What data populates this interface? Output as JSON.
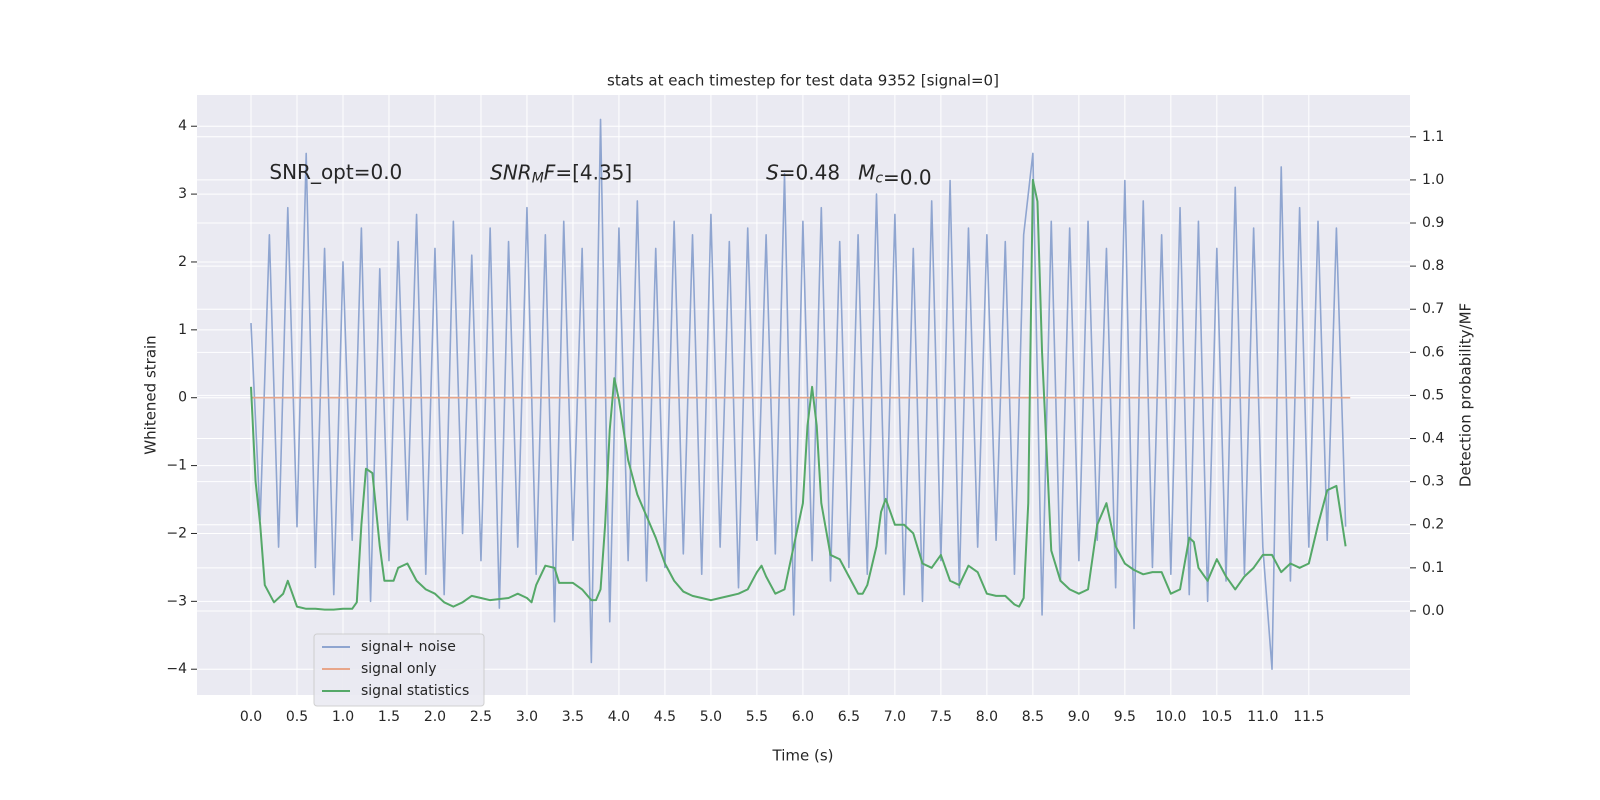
{
  "chart_data": {
    "type": "line",
    "title": "stats at each timestep for test data 9352 [signal=0]",
    "x_label": "Time (s)",
    "y_label": "Whitened strain",
    "y2_label": "Detection probability/MF",
    "annotations": [
      {
        "text": "SNR_opt=0.0",
        "math": false,
        "x": 0.2,
        "y": 3.3
      },
      {
        "text": "SNR_MF=[4.35]",
        "math": true,
        "x": 2.6,
        "y": 3.3
      },
      {
        "text": "S=0.48",
        "math": true,
        "x": 5.6,
        "y": 3.3
      },
      {
        "text": "M_c=0.0",
        "math": true,
        "x": 6.6,
        "y": 3.3
      }
    ],
    "xlim": [
      -0.587,
      12.6
    ],
    "ylim": [
      -4.38,
      4.46
    ],
    "y2lim": [
      -0.195,
      1.197
    ],
    "xticks": [
      {
        "value": 0,
        "label": "0.0"
      },
      0.5,
      {
        "value": 1,
        "label": "1.0"
      },
      1.5,
      {
        "value": 2,
        "label": "2.0"
      },
      2.5,
      {
        "value": 3,
        "label": "3.0"
      },
      3.5,
      {
        "value": 4,
        "label": "4.0"
      },
      4.5,
      {
        "value": 5,
        "label": "5.0"
      },
      5.5,
      {
        "value": 6,
        "label": "6.0"
      },
      6.5,
      {
        "value": 7,
        "label": "7.0"
      },
      7.5,
      {
        "value": 8,
        "label": "8.0"
      },
      8.5,
      {
        "value": 9,
        "label": "9.0"
      },
      9.5,
      {
        "value": 10,
        "label": "10.0"
      },
      10.5,
      {
        "value": 11,
        "label": "11.0"
      },
      11.5
    ],
    "yticks": [
      {
        "value": -4,
        "label": "−4"
      },
      {
        "value": -3,
        "label": "−3"
      },
      {
        "value": -2,
        "label": "−2"
      },
      {
        "value": -1,
        "label": "−1"
      },
      0,
      1,
      2,
      3,
      4
    ],
    "y2ticks": [
      {
        "value": 0,
        "label": "0.0"
      },
      0.1,
      0.2,
      0.3,
      0.4,
      0.5,
      0.6,
      0.7,
      0.8,
      0.9,
      {
        "value": 1,
        "label": "1.0"
      },
      1.1
    ],
    "grid": true,
    "legend": "lower left",
    "series": [
      {
        "name": "signal+ noise",
        "color": "#8fa5d0",
        "x": [
          0,
          0.1,
          0.2,
          0.3,
          0.4,
          0.5,
          0.6,
          0.7,
          0.8,
          0.9,
          1,
          1.1,
          1.2,
          1.3,
          1.4,
          1.5,
          1.6,
          1.7,
          1.8,
          1.9,
          2,
          2.1,
          2.2,
          2.3,
          2.4,
          2.5,
          2.6,
          2.7,
          2.8,
          2.9,
          3,
          3.1,
          3.2,
          3.3,
          3.4,
          3.5,
          3.6,
          3.7,
          3.8,
          3.9,
          4,
          4.1,
          4.2,
          4.3,
          4.4,
          4.5,
          4.6,
          4.7,
          4.8,
          4.9,
          5,
          5.1,
          5.2,
          5.3,
          5.4,
          5.5,
          5.6,
          5.7,
          5.8,
          5.9,
          6,
          6.1,
          6.2,
          6.3,
          6.4,
          6.5,
          6.6,
          6.7,
          6.8,
          6.9,
          7,
          7.1,
          7.2,
          7.3,
          7.4,
          7.5,
          7.6,
          7.7,
          7.8,
          7.9,
          8,
          8.1,
          8.2,
          8.3,
          8.4,
          8.5,
          8.6,
          8.7,
          8.8,
          8.9,
          9,
          9.1,
          9.2,
          9.3,
          9.4,
          9.5,
          9.6,
          9.7,
          9.8,
          9.9,
          10,
          10.1,
          10.2,
          10.3,
          10.4,
          10.5,
          10.6,
          10.7,
          10.8,
          10.9,
          11,
          11.1,
          11.2,
          11.3,
          11.4,
          11.5,
          11.6,
          11.7,
          11.8,
          11.9
        ],
        "values": [
          1.1,
          -1.8,
          2.4,
          -2.2,
          2.8,
          -1.9,
          3.6,
          -2.5,
          2.2,
          -2.9,
          2.0,
          -2.1,
          2.5,
          -3.0,
          1.9,
          -2.4,
          2.3,
          -1.8,
          2.7,
          -2.6,
          2.2,
          -2.9,
          2.6,
          -2.0,
          2.1,
          -2.4,
          2.5,
          -3.1,
          2.3,
          -2.2,
          2.8,
          -2.6,
          2.4,
          -3.3,
          2.6,
          -2.1,
          2.2,
          -3.9,
          4.1,
          -3.3,
          2.5,
          -2.4,
          2.9,
          -2.7,
          2.2,
          -2.5,
          2.6,
          -2.3,
          2.4,
          -2.6,
          2.7,
          -2.2,
          2.3,
          -2.8,
          2.5,
          -2.1,
          2.4,
          -2.3,
          3.3,
          -3.2,
          2.6,
          -2.4,
          2.8,
          -2.7,
          2.3,
          -2.5,
          2.4,
          -2.6,
          3.0,
          -2.3,
          2.7,
          -2.9,
          2.2,
          -3.0,
          2.9,
          -2.4,
          3.2,
          -2.8,
          2.5,
          -2.2,
          2.4,
          -2.1,
          2.3,
          -2.6,
          2.4,
          3.6,
          -3.2,
          2.6,
          -2.7,
          2.5,
          -2.4,
          2.6,
          -2.1,
          2.2,
          -2.8,
          3.2,
          -3.4,
          2.9,
          -2.5,
          2.4,
          -2.6,
          2.8,
          -2.9,
          2.6,
          -3.0,
          2.2,
          -2.7,
          3.1,
          -2.6,
          2.5,
          -2.2,
          -4.0,
          3.4,
          -2.7,
          2.8,
          -2.2,
          2.6,
          -2.1,
          2.5,
          -1.9
        ]
      },
      {
        "name": "signal only",
        "color": "#e8a68a",
        "x": [
          0,
          11.95
        ],
        "values": [
          0,
          0
        ]
      },
      {
        "name": "signal statistics",
        "color": "#55a868",
        "axis": "y2",
        "x": [
          0,
          0.05,
          0.1,
          0.15,
          0.25,
          0.35,
          0.4,
          0.5,
          0.6,
          0.7,
          0.8,
          0.9,
          1,
          1.1,
          1.15,
          1.2,
          1.25,
          1.32,
          1.4,
          1.45,
          1.55,
          1.6,
          1.7,
          1.8,
          1.9,
          2,
          2.1,
          2.2,
          2.3,
          2.4,
          2.5,
          2.6,
          2.8,
          2.9,
          3,
          3.05,
          3.1,
          3.2,
          3.3,
          3.35,
          3.5,
          3.6,
          3.7,
          3.75,
          3.8,
          3.85,
          3.9,
          3.95,
          4,
          4.1,
          4.2,
          4.3,
          4.4,
          4.5,
          4.6,
          4.7,
          4.8,
          4.9,
          5,
          5.1,
          5.2,
          5.3,
          5.4,
          5.5,
          5.55,
          5.6,
          5.7,
          5.8,
          5.9,
          6,
          6.05,
          6.1,
          6.15,
          6.2,
          6.3,
          6.4,
          6.5,
          6.6,
          6.65,
          6.7,
          6.8,
          6.85,
          6.9,
          7,
          7.1,
          7.2,
          7.3,
          7.4,
          7.5,
          7.6,
          7.7,
          7.8,
          7.9,
          8,
          8.1,
          8.2,
          8.3,
          8.35,
          8.4,
          8.45,
          8.5,
          8.55,
          8.6,
          8.7,
          8.8,
          8.9,
          9,
          9.1,
          9.2,
          9.3,
          9.4,
          9.5,
          9.6,
          9.7,
          9.8,
          9.9,
          10,
          10.1,
          10.2,
          10.25,
          10.3,
          10.4,
          10.5,
          10.6,
          10.7,
          10.8,
          10.9,
          11,
          11.1,
          11.2,
          11.3,
          11.4,
          11.5,
          11.6,
          11.7,
          11.8,
          11.9
        ],
        "values": [
          0.52,
          0.3,
          0.2,
          0.06,
          0.02,
          0.04,
          0.07,
          0.01,
          0.005,
          0.005,
          0.003,
          0.003,
          0.005,
          0.005,
          0.02,
          0.2,
          0.33,
          0.32,
          0.15,
          0.07,
          0.07,
          0.1,
          0.11,
          0.07,
          0.05,
          0.04,
          0.02,
          0.01,
          0.02,
          0.035,
          0.03,
          0.025,
          0.03,
          0.04,
          0.03,
          0.02,
          0.06,
          0.105,
          0.1,
          0.065,
          0.065,
          0.05,
          0.025,
          0.025,
          0.05,
          0.2,
          0.42,
          0.54,
          0.49,
          0.35,
          0.27,
          0.22,
          0.17,
          0.11,
          0.07,
          0.045,
          0.035,
          0.03,
          0.025,
          0.03,
          0.035,
          0.04,
          0.05,
          0.09,
          0.105,
          0.08,
          0.04,
          0.05,
          0.15,
          0.25,
          0.43,
          0.52,
          0.43,
          0.25,
          0.13,
          0.12,
          0.08,
          0.04,
          0.04,
          0.06,
          0.15,
          0.23,
          0.26,
          0.2,
          0.2,
          0.18,
          0.11,
          0.1,
          0.13,
          0.07,
          0.06,
          0.105,
          0.09,
          0.04,
          0.035,
          0.035,
          0.015,
          0.01,
          0.03,
          0.25,
          1.0,
          0.95,
          0.6,
          0.14,
          0.07,
          0.05,
          0.04,
          0.05,
          0.2,
          0.25,
          0.15,
          0.11,
          0.095,
          0.085,
          0.09,
          0.09,
          0.04,
          0.05,
          0.17,
          0.16,
          0.1,
          0.07,
          0.12,
          0.08,
          0.05,
          0.08,
          0.1,
          0.13,
          0.13,
          0.09,
          0.11,
          0.1,
          0.11,
          0.2,
          0.28,
          0.29,
          0.15
        ]
      }
    ]
  }
}
